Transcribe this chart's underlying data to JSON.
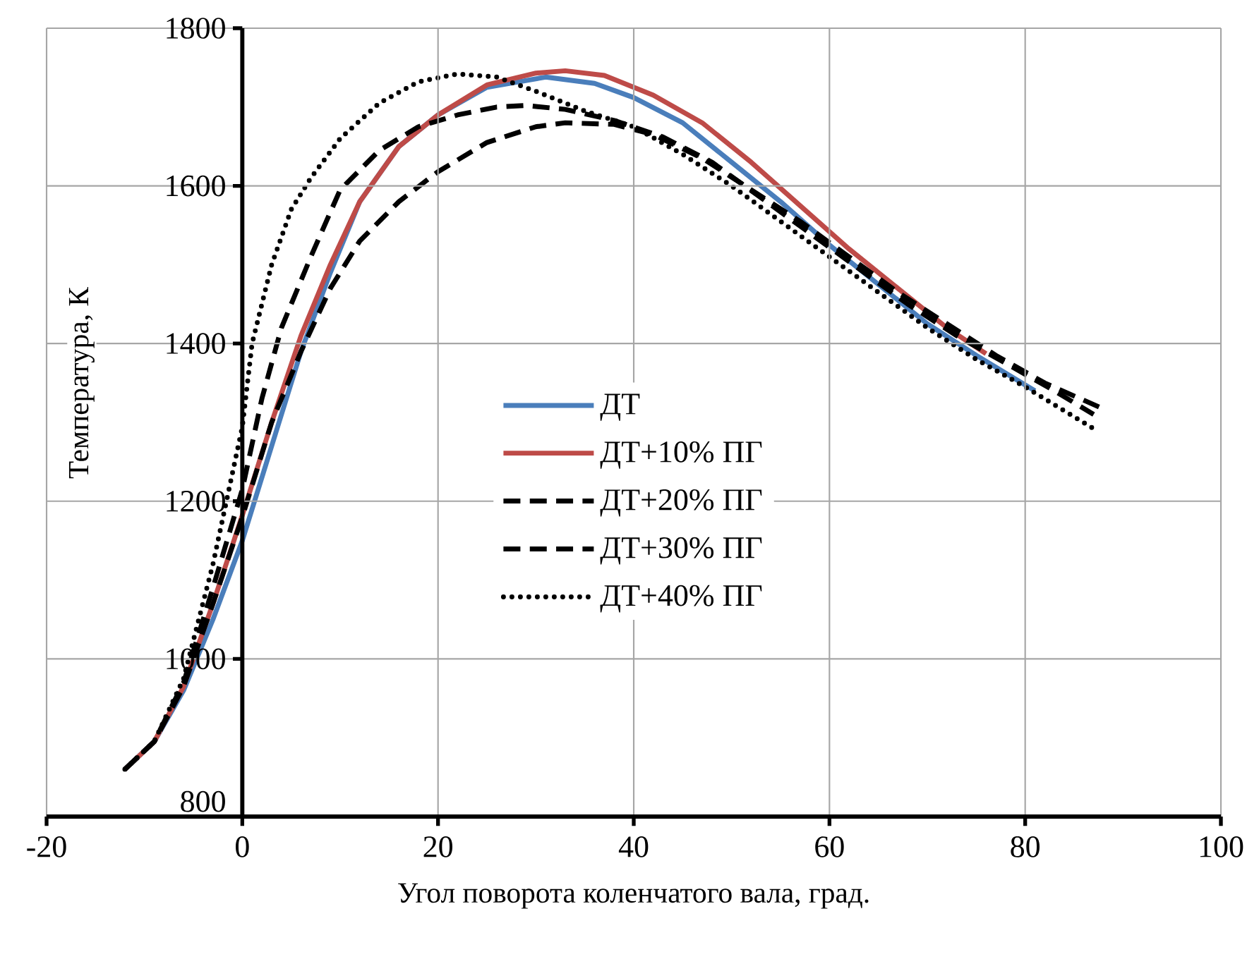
{
  "chart_data": {
    "type": "line",
    "xlabel": "Угол поворота коленчатого вала, град.",
    "ylabel": "Температура, К",
    "xlim": [
      -20,
      100
    ],
    "ylim": [
      800,
      1800
    ],
    "xticks": [
      -20,
      0,
      20,
      40,
      60,
      80,
      100
    ],
    "yticks": [
      800,
      1000,
      1200,
      1400,
      1600,
      1800
    ],
    "grid": true,
    "legend": "center",
    "marker": "none",
    "series": [
      {
        "name": "ДТ",
        "color": "#4a7ebb",
        "line_style": "solid",
        "x": [
          -12,
          -9,
          -6,
          -3,
          0,
          3,
          6,
          9,
          12,
          16,
          20,
          25,
          31,
          36,
          40,
          45,
          50,
          55,
          60,
          65,
          70,
          75,
          81
        ],
        "values": [
          860,
          895,
          960,
          1050,
          1150,
          1270,
          1390,
          1490,
          1580,
          1650,
          1690,
          1725,
          1738,
          1730,
          1712,
          1680,
          1630,
          1580,
          1525,
          1475,
          1425,
          1385,
          1340
        ]
      },
      {
        "name": "ДТ+10% ПГ",
        "color": "#be4b48",
        "line_style": "solid",
        "x": [
          -12,
          -9,
          -6,
          -3,
          0,
          3,
          6,
          9,
          12,
          16,
          20,
          25,
          30,
          33,
          37,
          42,
          47,
          52,
          57,
          62,
          67,
          72,
          76
        ],
        "values": [
          860,
          895,
          965,
          1070,
          1182,
          1300,
          1410,
          1500,
          1580,
          1650,
          1690,
          1728,
          1743,
          1746,
          1740,
          1715,
          1680,
          1630,
          1575,
          1520,
          1470,
          1420,
          1387
        ]
      },
      {
        "name": "ДТ+20% ПГ",
        "color": "#000000",
        "line_style": "dashed",
        "x": [
          -12,
          -9,
          -6,
          -3,
          0,
          3,
          6,
          9,
          12,
          16,
          20,
          25,
          30,
          33,
          38,
          42,
          47,
          52,
          57,
          62,
          67,
          72,
          77,
          82,
          88
        ],
        "values": [
          860,
          895,
          965,
          1070,
          1180,
          1300,
          1390,
          1470,
          1530,
          1580,
          1618,
          1655,
          1675,
          1680,
          1678,
          1665,
          1635,
          1595,
          1555,
          1510,
          1465,
          1425,
          1385,
          1350,
          1317
        ]
      },
      {
        "name": "ДТ+30% ПГ",
        "color": "#000000",
        "line_style": "dashed",
        "x": [
          -12,
          -9,
          -6,
          -3,
          0,
          2,
          4,
          7,
          10,
          14,
          18,
          22,
          26,
          29,
          33,
          38,
          43,
          48,
          53,
          58,
          63,
          68,
          73,
          78,
          83,
          87
        ],
        "values": [
          860,
          895,
          970,
          1090,
          1215,
          1330,
          1420,
          1510,
          1595,
          1645,
          1675,
          1690,
          1700,
          1702,
          1697,
          1683,
          1662,
          1630,
          1585,
          1540,
          1495,
          1450,
          1410,
          1375,
          1340,
          1310
        ]
      },
      {
        "name": "ДТ+40% ПГ",
        "color": "#000000",
        "line_style": "dotted",
        "x": [
          -12,
          -9,
          -6,
          -3,
          0,
          1,
          3,
          5,
          7,
          10,
          14,
          18,
          22,
          26,
          30,
          35,
          40,
          45,
          50,
          55,
          60,
          65,
          70,
          75,
          80,
          87
        ],
        "values": [
          860,
          895,
          975,
          1120,
          1294,
          1400,
          1500,
          1570,
          1610,
          1660,
          1705,
          1732,
          1742,
          1738,
          1720,
          1695,
          1675,
          1640,
          1600,
          1555,
          1510,
          1465,
          1420,
          1380,
          1345,
          1292
        ]
      }
    ]
  }
}
